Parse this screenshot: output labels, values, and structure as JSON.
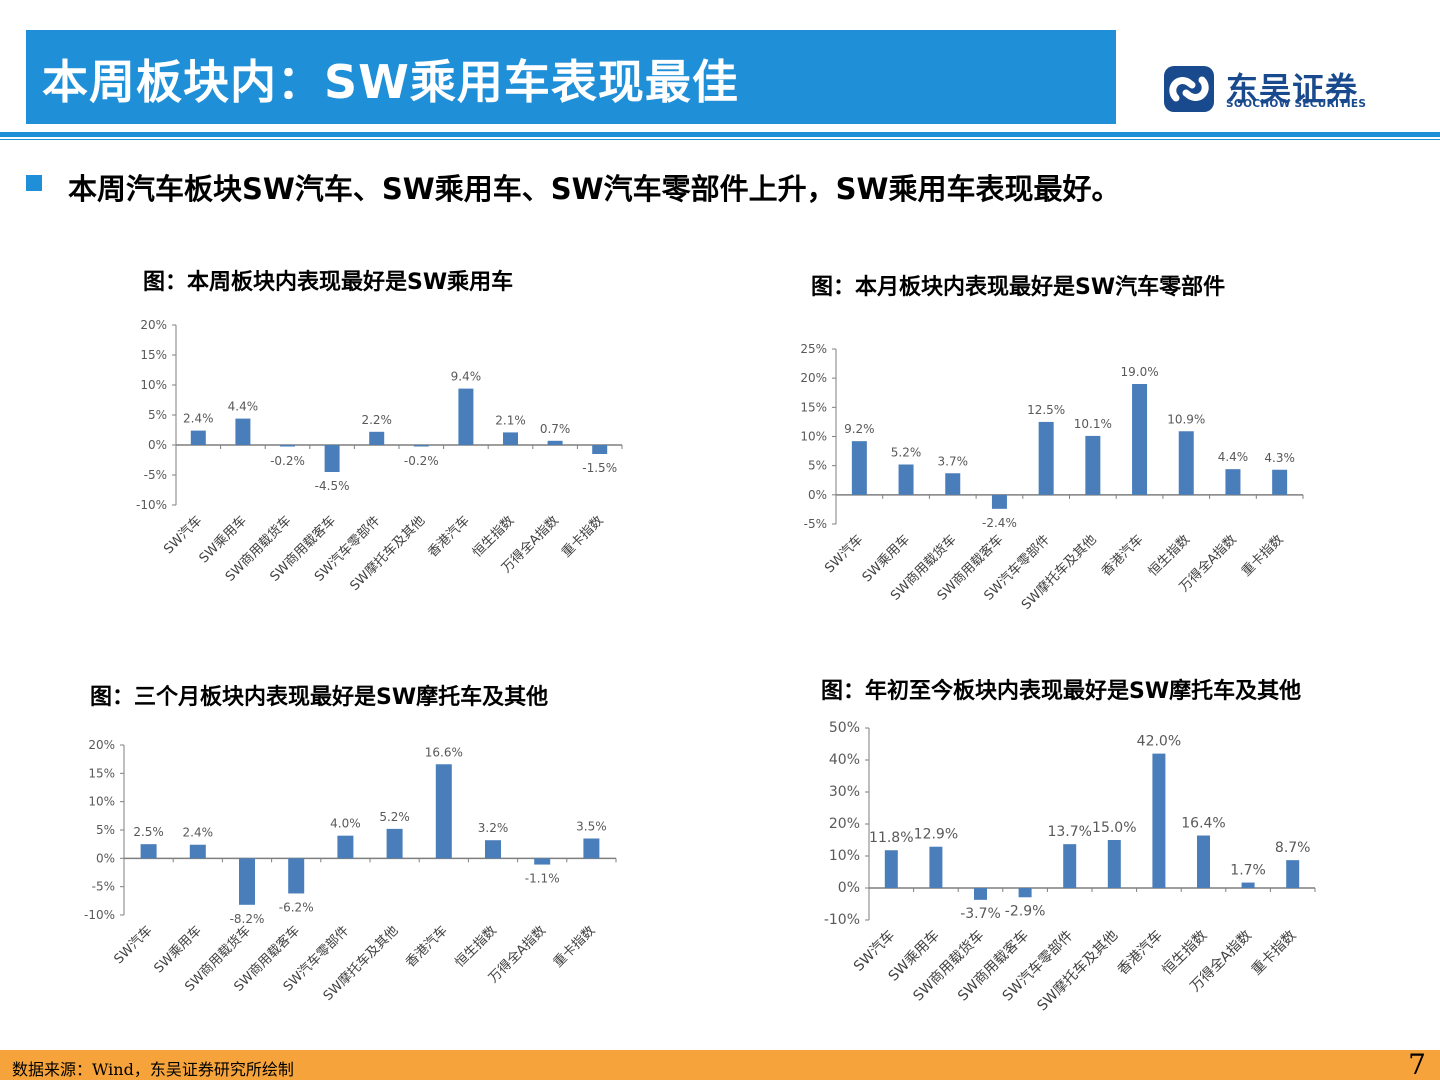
{
  "header": {
    "title": "本周板块内：SW乘用车表现最佳",
    "logo_cn": "东吴证券",
    "logo_en": "SOOCHOW SECURITIES",
    "accent_color": "#1f8fd8"
  },
  "bullet": "本周汽车板块SW汽车、SW乘用车、SW汽车零部件上升，SW乘用车表现最好。",
  "footer": {
    "source": "数据来源：Wind，东吴证券研究所绘制",
    "page": "7"
  },
  "chart_titles": [
    "图：本周板块内表现最好是SW乘用车",
    "图：本月板块内表现最好是SW汽车零部件",
    "图：三个月板块内表现最好是SW摩托车及其他",
    "图：年初至今板块内表现最好是SW摩托车及其他"
  ],
  "chart_data": [
    {
      "type": "bar",
      "title": "图：本周板块内表现最好是SW乘用车",
      "categories": [
        "SW汽车",
        "SW乘用车",
        "SW商用载货车",
        "SW商用载客车",
        "SW汽车零部件",
        "SW摩托车及其他",
        "香港汽车",
        "恒生指数",
        "万得全A指数",
        "重卡指数"
      ],
      "values": [
        2.4,
        4.4,
        -0.2,
        -4.5,
        2.2,
        -0.2,
        9.4,
        2.1,
        0.7,
        -1.5
      ],
      "data_labels": [
        "2.4%",
        "4.4%",
        "-0.2%",
        "-4.5%",
        "2.2%",
        "-0.2%",
        "9.4%",
        "2.1%",
        "0.7%",
        "-1.5%"
      ],
      "yticks": [
        20,
        15,
        10,
        5,
        0,
        -5,
        -10
      ],
      "ytick_labels": [
        "20%",
        "15%",
        "10%",
        "5%",
        "0%",
        "-5%",
        "-10%"
      ],
      "ylim": [
        -10,
        20
      ],
      "bar_color": "#4a7ebb"
    },
    {
      "type": "bar",
      "title": "图：本月板块内表现最好是SW汽车零部件",
      "categories": [
        "SW汽车",
        "SW乘用车",
        "SW商用载货车",
        "SW商用载客车",
        "SW汽车零部件",
        "SW摩托车及其他",
        "香港汽车",
        "恒生指数",
        "万得全A指数",
        "重卡指数"
      ],
      "values": [
        9.2,
        5.2,
        3.7,
        -2.4,
        12.5,
        10.1,
        19.0,
        10.9,
        4.4,
        4.3
      ],
      "data_labels": [
        "9.2%",
        "5.2%",
        "3.7%",
        "-2.4%",
        "12.5%",
        "10.1%",
        "19.0%",
        "10.9%",
        "4.4%",
        "4.3%"
      ],
      "yticks": [
        25,
        20,
        15,
        10,
        5,
        0,
        -5
      ],
      "ytick_labels": [
        "25%",
        "20%",
        "15%",
        "10%",
        "5%",
        "0%",
        "-5%"
      ],
      "ylim": [
        -5,
        25
      ],
      "bar_color": "#4a7ebb"
    },
    {
      "type": "bar",
      "title": "图：三个月板块内表现最好是SW摩托车及其他",
      "categories": [
        "SW汽车",
        "SW乘用车",
        "SW商用载货车",
        "SW商用载客车",
        "SW汽车零部件",
        "SW摩托车及其他",
        "香港汽车",
        "恒生指数",
        "万得全A指数",
        "重卡指数"
      ],
      "values": [
        2.5,
        2.4,
        -8.2,
        -6.2,
        4.0,
        5.2,
        16.6,
        3.2,
        -1.1,
        3.5
      ],
      "data_labels": [
        "2.5%",
        "2.4%",
        "-8.2%",
        "-6.2%",
        "4.0%",
        "5.2%",
        "16.6%",
        "3.2%",
        "-1.1%",
        "3.5%"
      ],
      "yticks": [
        20,
        15,
        10,
        5,
        0,
        -5,
        -10
      ],
      "ytick_labels": [
        "20%",
        "15%",
        "10%",
        "5%",
        "0%",
        "-5%",
        "-10%"
      ],
      "ylim": [
        -10,
        20
      ],
      "bar_color": "#4a7ebb"
    },
    {
      "type": "bar",
      "title": "图：年初至今板块内表现最好是SW摩托车及其他",
      "categories": [
        "SW汽车",
        "SW乘用车",
        "SW商用载货车",
        "SW商用载客车",
        "SW汽车零部件",
        "SW摩托车及其他",
        "香港汽车",
        "恒生指数",
        "万得全A指数",
        "重卡指数"
      ],
      "values": [
        11.8,
        12.9,
        -3.7,
        -2.9,
        13.7,
        15.0,
        42.0,
        16.4,
        1.7,
        8.7
      ],
      "data_labels": [
        "11.8%",
        "12.9%",
        "-3.7%",
        "-2.9%",
        "13.7%",
        "15.0%",
        "42.0%",
        "16.4%",
        "1.7%",
        "8.7%"
      ],
      "yticks": [
        50,
        40,
        30,
        20,
        10,
        0,
        -10
      ],
      "ytick_labels": [
        "50%",
        "40%",
        "30%",
        "20%",
        "10%",
        "0%",
        "-10%"
      ],
      "ylim": [
        -10,
        50
      ],
      "bar_color": "#4a7ebb"
    }
  ]
}
